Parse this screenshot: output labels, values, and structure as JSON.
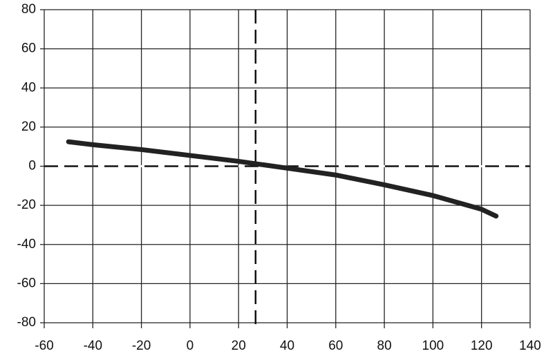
{
  "chart_data": {
    "type": "line",
    "x": [
      -50,
      -40,
      -20,
      0,
      20,
      40,
      60,
      80,
      100,
      120,
      126
    ],
    "series": [
      {
        "color": "#222222",
        "values": [
          12.5,
          11,
          8.5,
          5.5,
          2.5,
          -1,
          -4.5,
          -9.5,
          -15,
          -22,
          -25.5
        ]
      }
    ],
    "xlim": [
      -60,
      140
    ],
    "xticks": [
      -60,
      -40,
      -20,
      0,
      20,
      40,
      60,
      80,
      100,
      120,
      140
    ],
    "ylim": [
      -80,
      80
    ],
    "yticks": [
      -80,
      -60,
      -40,
      -20,
      0,
      20,
      40,
      60,
      80
    ],
    "grid": true,
    "hline": 0,
    "vline": 27
  }
}
